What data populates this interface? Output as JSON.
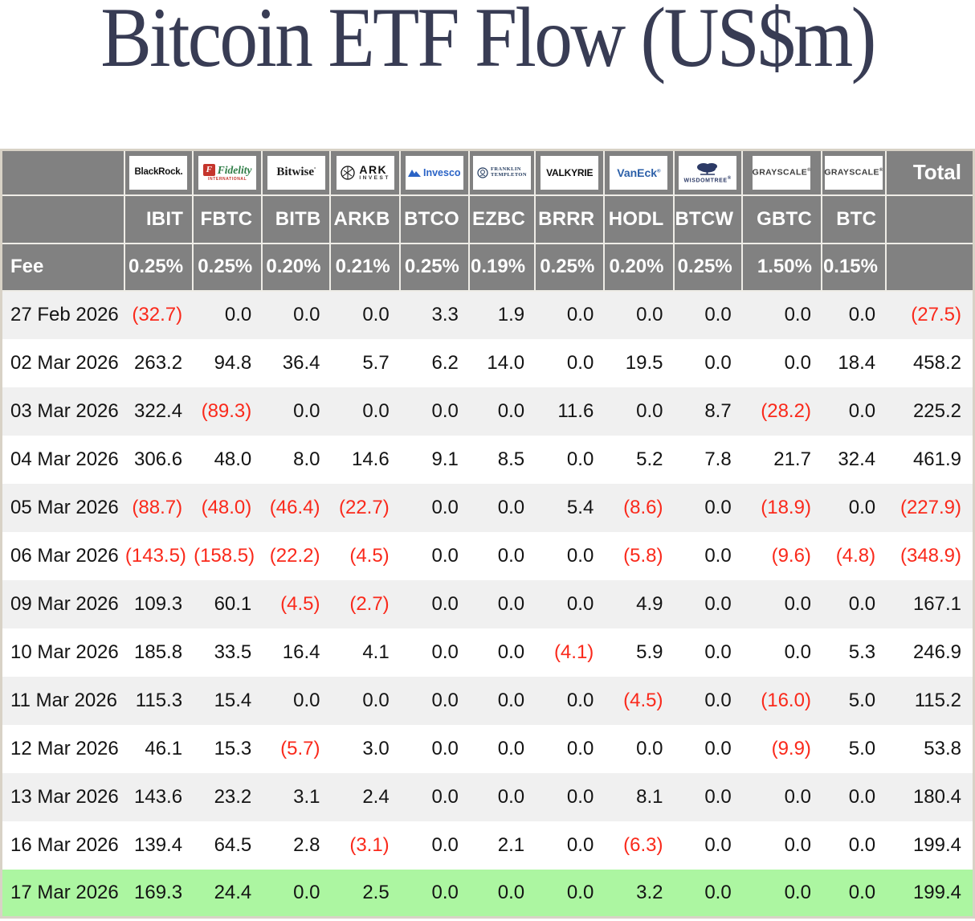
{
  "page": {
    "title": "Bitcoin ETF Flow (US$m)"
  },
  "colors": {
    "title": "#383c54",
    "header_bg": "#818181",
    "header_text": "#ffffff",
    "negative": "#fa291b",
    "stripe_row": "#f0f0f0",
    "highlight_row": "#acf6a1",
    "table_border": "#d8d2c6"
  },
  "table": {
    "fee_label": "Fee",
    "total_label": "Total",
    "columns": [
      {
        "ticker": "IBIT",
        "fee": "0.25%",
        "provider": "BlackRock",
        "logo": {
          "type": "blackrock",
          "text": "BlackRock."
        }
      },
      {
        "ticker": "FBTC",
        "fee": "0.25%",
        "provider": "Fidelity International",
        "logo": {
          "type": "fidelity",
          "icon": "F",
          "text": "Fidelity",
          "sub": "INTERNATIONAL"
        }
      },
      {
        "ticker": "BITB",
        "fee": "0.20%",
        "provider": "Bitwise",
        "logo": {
          "type": "bitwise",
          "text": "Bitwise"
        }
      },
      {
        "ticker": "ARKB",
        "fee": "0.21%",
        "provider": "ARK Invest",
        "logo": {
          "type": "ark",
          "text": "ARK",
          "sub": "INVEST"
        }
      },
      {
        "ticker": "BTCO",
        "fee": "0.25%",
        "provider": "Invesco",
        "logo": {
          "type": "invesco",
          "text": "Invesco"
        }
      },
      {
        "ticker": "EZBC",
        "fee": "0.19%",
        "provider": "Franklin Templeton",
        "logo": {
          "type": "franklin",
          "text": "FRANKLIN",
          "sub": "TEMPLETON"
        }
      },
      {
        "ticker": "BRRR",
        "fee": "0.25%",
        "provider": "Valkyrie",
        "logo": {
          "type": "valkyrie",
          "text": "VALKYRIE"
        }
      },
      {
        "ticker": "HODL",
        "fee": "0.20%",
        "provider": "VanEck",
        "logo": {
          "type": "vaneck",
          "text": "VanEck"
        }
      },
      {
        "ticker": "BTCW",
        "fee": "0.25%",
        "provider": "WisdomTree",
        "logo": {
          "type": "wisdomtree",
          "text": "WISDOMTREE"
        }
      },
      {
        "ticker": "GBTC",
        "fee": "1.50%",
        "provider": "Grayscale",
        "logo": {
          "type": "grayscale",
          "text": "GRAYSCALE"
        }
      },
      {
        "ticker": "BTC",
        "fee": "0.15%",
        "provider": "Grayscale",
        "logo": {
          "type": "grayscale",
          "text": "GRAYSCALE"
        }
      }
    ],
    "rows": [
      {
        "date": "27 Feb 2026",
        "values": [
          "(32.7)",
          "0.0",
          "0.0",
          "0.0",
          "3.3",
          "1.9",
          "0.0",
          "0.0",
          "0.0",
          "0.0",
          "0.0"
        ],
        "total": "(27.5)",
        "highlight": false
      },
      {
        "date": "02 Mar 2026",
        "values": [
          "263.2",
          "94.8",
          "36.4",
          "5.7",
          "6.2",
          "14.0",
          "0.0",
          "19.5",
          "0.0",
          "0.0",
          "18.4"
        ],
        "total": "458.2",
        "highlight": false
      },
      {
        "date": "03 Mar 2026",
        "values": [
          "322.4",
          "(89.3)",
          "0.0",
          "0.0",
          "0.0",
          "0.0",
          "11.6",
          "0.0",
          "8.7",
          "(28.2)",
          "0.0"
        ],
        "total": "225.2",
        "highlight": false
      },
      {
        "date": "04 Mar 2026",
        "values": [
          "306.6",
          "48.0",
          "8.0",
          "14.6",
          "9.1",
          "8.5",
          "0.0",
          "5.2",
          "7.8",
          "21.7",
          "32.4"
        ],
        "total": "461.9",
        "highlight": false
      },
      {
        "date": "05 Mar 2026",
        "values": [
          "(88.7)",
          "(48.0)",
          "(46.4)",
          "(22.7)",
          "0.0",
          "0.0",
          "5.4",
          "(8.6)",
          "0.0",
          "(18.9)",
          "0.0"
        ],
        "total": "(227.9)",
        "highlight": false
      },
      {
        "date": "06 Mar 2026",
        "values": [
          "(143.5)",
          "(158.5)",
          "(22.2)",
          "(4.5)",
          "0.0",
          "0.0",
          "0.0",
          "(5.8)",
          "0.0",
          "(9.6)",
          "(4.8)"
        ],
        "total": "(348.9)",
        "highlight": false
      },
      {
        "date": "09 Mar 2026",
        "values": [
          "109.3",
          "60.1",
          "(4.5)",
          "(2.7)",
          "0.0",
          "0.0",
          "0.0",
          "4.9",
          "0.0",
          "0.0",
          "0.0"
        ],
        "total": "167.1",
        "highlight": false
      },
      {
        "date": "10 Mar 2026",
        "values": [
          "185.8",
          "33.5",
          "16.4",
          "4.1",
          "0.0",
          "0.0",
          "(4.1)",
          "5.9",
          "0.0",
          "0.0",
          "5.3"
        ],
        "total": "246.9",
        "highlight": false
      },
      {
        "date": "11 Mar 2026",
        "values": [
          "115.3",
          "15.4",
          "0.0",
          "0.0",
          "0.0",
          "0.0",
          "0.0",
          "(4.5)",
          "0.0",
          "(16.0)",
          "5.0"
        ],
        "total": "115.2",
        "highlight": false
      },
      {
        "date": "12 Mar 2026",
        "values": [
          "46.1",
          "15.3",
          "(5.7)",
          "3.0",
          "0.0",
          "0.0",
          "0.0",
          "0.0",
          "0.0",
          "(9.9)",
          "5.0"
        ],
        "total": "53.8",
        "highlight": false
      },
      {
        "date": "13 Mar 2026",
        "values": [
          "143.6",
          "23.2",
          "3.1",
          "2.4",
          "0.0",
          "0.0",
          "0.0",
          "8.1",
          "0.0",
          "0.0",
          "0.0"
        ],
        "total": "180.4",
        "highlight": false
      },
      {
        "date": "16 Mar 2026",
        "values": [
          "139.4",
          "64.5",
          "2.8",
          "(3.1)",
          "0.0",
          "2.1",
          "0.0",
          "(6.3)",
          "0.0",
          "0.0",
          "0.0"
        ],
        "total": "199.4",
        "highlight": false
      },
      {
        "date": "17 Mar 2026",
        "values": [
          "169.3",
          "24.4",
          "0.0",
          "2.5",
          "0.0",
          "0.0",
          "0.0",
          "3.2",
          "0.0",
          "0.0",
          "0.0"
        ],
        "total": "199.4",
        "highlight": true
      }
    ]
  }
}
